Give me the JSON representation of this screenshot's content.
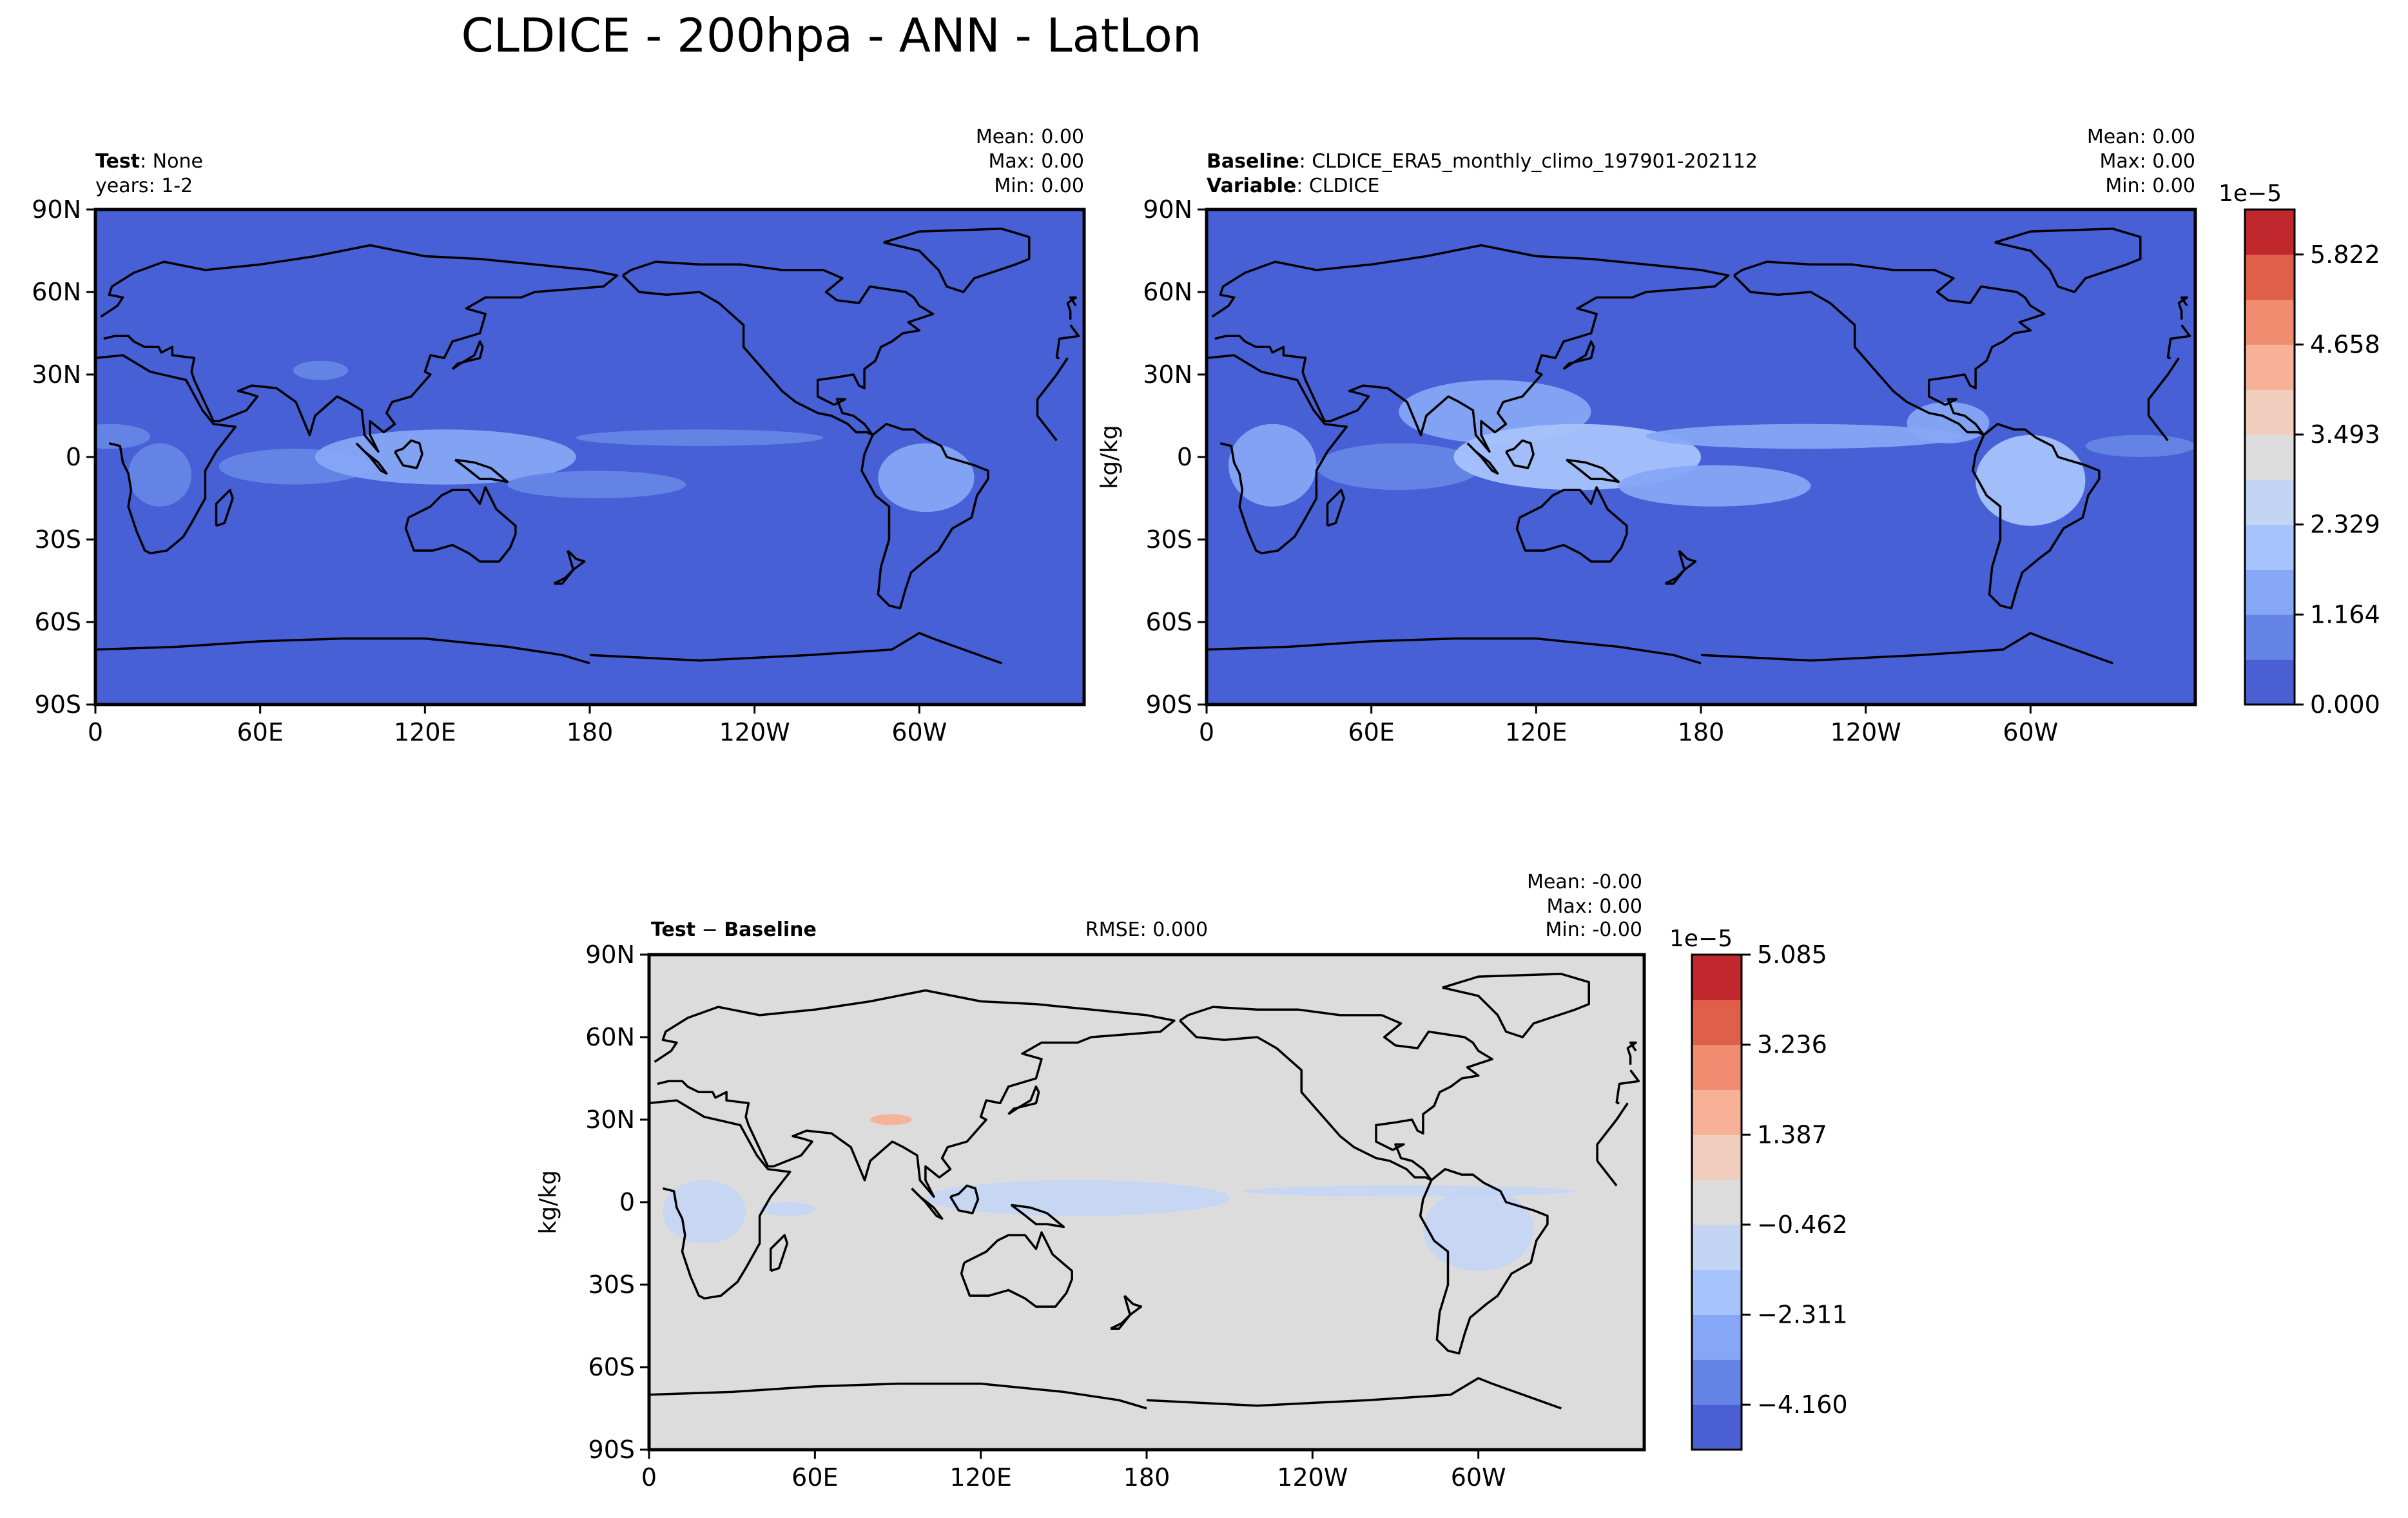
{
  "figure_title": "CLDICE - 200hpa - ANN - LatLon",
  "colors": {
    "ocean_base": "#4760d5",
    "diff_base": "#dcdcdc",
    "seq": [
      "#4a5fd1",
      "#6585e6",
      "#86a6f6",
      "#a6c3fc",
      "#c4d5f3",
      "#dcdcdc",
      "#f0cdbd",
      "#f6b196",
      "#f08d70",
      "#de604b",
      "#c0282d"
    ]
  },
  "lon_ticks": [
    "0",
    "60E",
    "120E",
    "180",
    "120W",
    "60W"
  ],
  "lat_ticks": [
    "90N",
    "60N",
    "30N",
    "0",
    "30S",
    "60S",
    "90S"
  ],
  "chart_data": [
    {
      "type": "heatmap",
      "panel": "test",
      "header_bold": "Test",
      "header_value": ": None",
      "subheader": "years: 1-2",
      "stats": [
        "Mean:  0.00",
        "Max:  0.00",
        "Min:  0.00"
      ],
      "ylabel": "",
      "xlabel": "",
      "xlim": [
        0,
        360
      ],
      "ylim": [
        -90,
        90
      ],
      "features": [
        {
          "name": "itcz-band",
          "lon_range": [
            -10,
            20
          ],
          "lat_range": [
            3,
            12
          ],
          "level": 1
        },
        {
          "name": "africa-convection",
          "lon_range": [
            12,
            35
          ],
          "lat_range": [
            -18,
            5
          ],
          "level": 1
        },
        {
          "name": "indian-ocean-band",
          "lon_range": [
            45,
            100
          ],
          "lat_range": [
            -10,
            3
          ],
          "level": 1
        },
        {
          "name": "maritime-continent",
          "lon_range": [
            80,
            175
          ],
          "lat_range": [
            -10,
            10
          ],
          "level": 2
        },
        {
          "name": "tibet-patch",
          "lon_range": [
            72,
            92
          ],
          "lat_range": [
            28,
            35
          ],
          "level": 1
        },
        {
          "name": "spcz",
          "lon_range": [
            150,
            215
          ],
          "lat_range": [
            -15,
            -5
          ],
          "level": 1
        },
        {
          "name": "pacific-itcz",
          "lon_range": [
            175,
            265
          ],
          "lat_range": [
            4,
            10
          ],
          "level": 1
        },
        {
          "name": "amazon",
          "lon_range": [
            285,
            320
          ],
          "lat_range": [
            -20,
            5
          ],
          "level": 2
        }
      ]
    },
    {
      "type": "heatmap",
      "panel": "baseline",
      "header_bold": "Baseline",
      "header_value": ": CLDICE_ERA5_monthly_climo_197901-202112",
      "header2_bold": "Variable",
      "header2_value": ": CLDICE",
      "stats": [
        "Mean:  0.00",
        "Max:  0.00",
        "Min:  0.00"
      ],
      "ylabel": "kg/kg",
      "xlim": [
        0,
        360
      ],
      "ylim": [
        -90,
        90
      ],
      "features": [
        {
          "name": "africa-convection",
          "lon_range": [
            8,
            40
          ],
          "lat_range": [
            -18,
            12
          ],
          "level": 2
        },
        {
          "name": "indian-ocean-band",
          "lon_range": [
            40,
            100
          ],
          "lat_range": [
            -12,
            5
          ],
          "level": 1
        },
        {
          "name": "south-asia",
          "lon_range": [
            70,
            140
          ],
          "lat_range": [
            5,
            28
          ],
          "level": 2
        },
        {
          "name": "maritime-continent",
          "lon_range": [
            90,
            180
          ],
          "lat_range": [
            -12,
            12
          ],
          "level": 3
        },
        {
          "name": "spcz",
          "lon_range": [
            150,
            220
          ],
          "lat_range": [
            -18,
            -3
          ],
          "level": 2
        },
        {
          "name": "pacific-itcz",
          "lon_range": [
            160,
            275
          ],
          "lat_range": [
            3,
            12
          ],
          "level": 2
        },
        {
          "name": "central-america",
          "lon_range": [
            255,
            285
          ],
          "lat_range": [
            5,
            20
          ],
          "level": 2
        },
        {
          "name": "amazon",
          "lon_range": [
            280,
            320
          ],
          "lat_range": [
            -25,
            8
          ],
          "level": 3
        },
        {
          "name": "atlantic-itcz",
          "lon_range": [
            320,
            360
          ],
          "lat_range": [
            0,
            8
          ],
          "level": 1
        }
      ]
    },
    {
      "type": "heatmap",
      "panel": "difference",
      "header_bold": "Test",
      "header_minus": " − ",
      "header_bold2": "Baseline",
      "rmse": "RMSE: 0.000",
      "stats": [
        "Mean: -0.00",
        "Max:  0.00",
        "Min: -0.00"
      ],
      "ylabel": "kg/kg",
      "xlim": [
        0,
        360
      ],
      "ylim": [
        -90,
        90
      ],
      "features": [
        {
          "name": "africa-deficit",
          "lon_range": [
            5,
            35
          ],
          "lat_range": [
            -15,
            8
          ],
          "level": 4
        },
        {
          "name": "indian-deficit",
          "lon_range": [
            40,
            60
          ],
          "lat_range": [
            -5,
            0
          ],
          "level": 4
        },
        {
          "name": "maritime-deficit",
          "lon_range": [
            100,
            210
          ],
          "lat_range": [
            -5,
            8
          ],
          "level": 4
        },
        {
          "name": "pacific-deficit",
          "lon_range": [
            215,
            335
          ],
          "lat_range": [
            2,
            6
          ],
          "level": 4
        },
        {
          "name": "amazon-deficit",
          "lon_range": [
            280,
            320
          ],
          "lat_range": [
            -25,
            5
          ],
          "level": 4
        },
        {
          "name": "tibet-excess",
          "lon_range": [
            80,
            95
          ],
          "lat_range": [
            28,
            32
          ],
          "level": 6
        }
      ]
    }
  ],
  "colorbars": [
    {
      "name": "main-colorbar",
      "exponent": "1e−5",
      "tick_labels": [
        "0.000",
        "1.164",
        "2.329",
        "3.493",
        "4.658",
        "5.822"
      ],
      "vmin": 0.0,
      "vmax": 6.404,
      "bins": 11
    },
    {
      "name": "diff-colorbar",
      "exponent": "1e−5",
      "tick_labels": [
        "−4.160",
        "−2.311",
        "−0.462",
        "1.387",
        "3.236",
        "5.085"
      ],
      "vmin": -5.085,
      "vmax": 5.085,
      "bins": 11
    }
  ]
}
